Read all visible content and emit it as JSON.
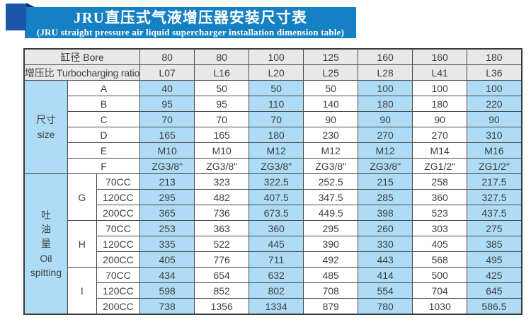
{
  "banner": {
    "title": "JRU直压式气液增压器安装尺寸表",
    "subtitle": "(JRU straight pressure air liquid supercharger installation dimension table)",
    "banner_color": "#1580c4",
    "square_color": "#1c56a8"
  },
  "table": {
    "colors": {
      "header_bg": "#e8e8e8",
      "stripe_blue": "#aedcf6",
      "stripe_white": "#ffffff"
    },
    "header_rows": [
      {
        "label_zh": "缸径",
        "label_en": "Bore",
        "values": [
          "80",
          "80",
          "100",
          "125",
          "160",
          "160",
          "180"
        ]
      },
      {
        "label_zh": "增压比",
        "label_en": "Turbocharging ratio",
        "values": [
          "L07",
          "L16",
          "L20",
          "L25",
          "L28",
          "L41",
          "L36"
        ]
      }
    ],
    "size_section": {
      "group_zh": "尺寸",
      "group_en": "size",
      "rows": [
        {
          "label": "A",
          "values": [
            "40",
            "50",
            "50",
            "50",
            "100",
            "100",
            "100"
          ]
        },
        {
          "label": "B",
          "values": [
            "95",
            "95",
            "110",
            "140",
            "180",
            "180",
            "220"
          ]
        },
        {
          "label": "C",
          "values": [
            "70",
            "70",
            "70",
            "90",
            "90",
            "90",
            "90"
          ]
        },
        {
          "label": "D",
          "values": [
            "165",
            "165",
            "180",
            "230",
            "270",
            "270",
            "310"
          ]
        },
        {
          "label": "E",
          "values": [
            "M10",
            "M10",
            "M12",
            "M12",
            "M12",
            "M14",
            "M16"
          ]
        },
        {
          "label": "F",
          "values": [
            "ZG3/8\"",
            "ZG3/8\"",
            "ZG3/8\"",
            "ZG3/8\"",
            "ZG3/8\"",
            "ZG1/2\"",
            "ZG1/2\""
          ]
        }
      ]
    },
    "oil_section": {
      "group_zh": "吐油量",
      "group_en": "Oil spitting",
      "groups": [
        {
          "label": "G",
          "rows": [
            {
              "label": "70CC",
              "values": [
                "213",
                "323",
                "322.5",
                "252.5",
                "215",
                "258",
                "217.5"
              ]
            },
            {
              "label": "120CC",
              "values": [
                "295",
                "482",
                "407.5",
                "347.5",
                "285",
                "360",
                "327.5"
              ]
            },
            {
              "label": "200CC",
              "values": [
                "365",
                "736",
                "673.5",
                "449.5",
                "398",
                "523",
                "437.5"
              ]
            }
          ]
        },
        {
          "label": "H",
          "rows": [
            {
              "label": "70CC",
              "values": [
                "253",
                "363",
                "360",
                "295",
                "260",
                "303",
                "275"
              ]
            },
            {
              "label": "120CC",
              "values": [
                "335",
                "522",
                "445",
                "390",
                "330",
                "405",
                "385"
              ]
            },
            {
              "label": "200CC",
              "values": [
                "405",
                "776",
                "711",
                "492",
                "443",
                "568",
                "495"
              ]
            }
          ]
        },
        {
          "label": "I",
          "rows": [
            {
              "label": "70CC",
              "values": [
                "434",
                "654",
                "632",
                "485",
                "414",
                "500",
                "425"
              ]
            },
            {
              "label": "120CC",
              "values": [
                "598",
                "852",
                "802",
                "708",
                "554",
                "704",
                "645"
              ]
            },
            {
              "label": "200CC",
              "values": [
                "738",
                "1356",
                "1334",
                "879",
                "780",
                "1030",
                "586.5"
              ]
            }
          ]
        }
      ]
    }
  }
}
